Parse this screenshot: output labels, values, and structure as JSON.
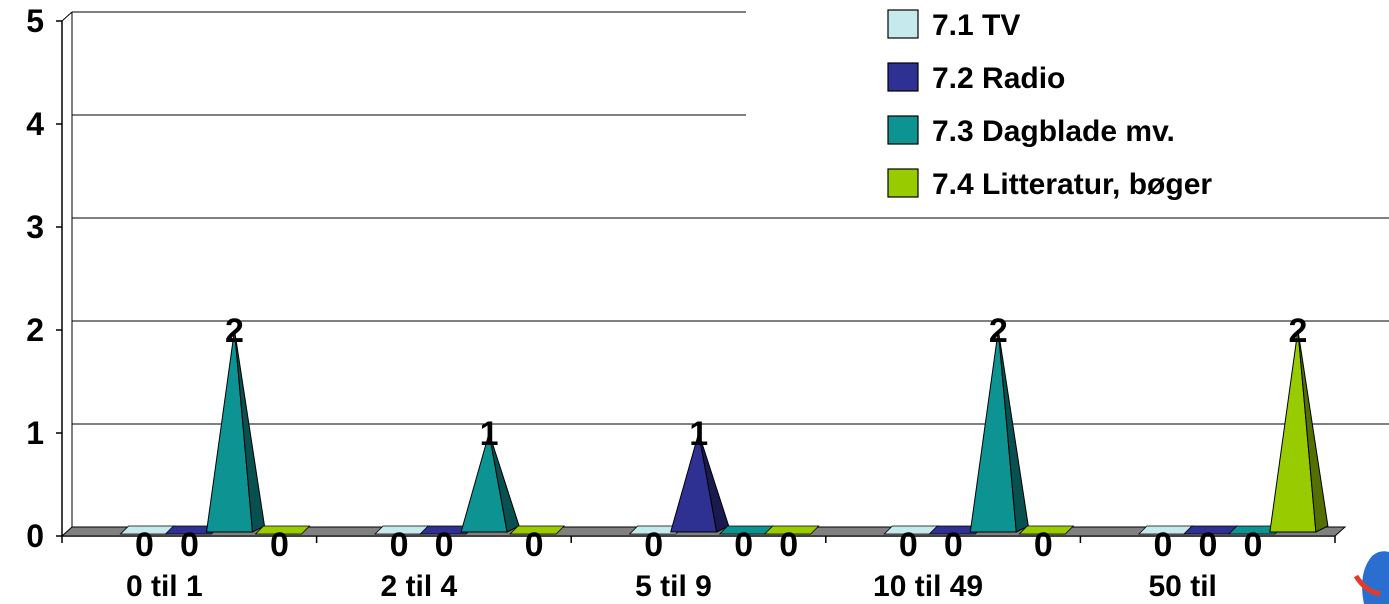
{
  "chart_data": {
    "type": "bar",
    "style": "3d-pyramid",
    "categories": [
      "0 til 1",
      "2 til 4",
      "5 til 9",
      "10 til 49",
      "50 til"
    ],
    "series": [
      {
        "name": "7.1 TV",
        "color": "#c6e9ee",
        "values": [
          0,
          0,
          0,
          0,
          0
        ]
      },
      {
        "name": "7.2 Radio",
        "color": "#2e3192",
        "values": [
          0,
          0,
          1,
          0,
          0
        ]
      },
      {
        "name": "7.3 Dagblade mv.",
        "color": "#0e9393",
        "values": [
          2,
          1,
          0,
          2,
          0
        ]
      },
      {
        "name": "7.4 Litteratur, bøger",
        "color": "#99cc00",
        "values": [
          0,
          0,
          0,
          0,
          2
        ]
      }
    ],
    "data_labels": [
      [
        "0",
        "0",
        "2",
        "0"
      ],
      [
        "0",
        "0",
        "1",
        "0"
      ],
      [
        "0",
        "1",
        "0",
        "0"
      ],
      [
        "0",
        "0",
        "2",
        "0"
      ],
      [
        "0",
        "0",
        "0",
        "2"
      ]
    ],
    "y_ticks": [
      "0",
      "1",
      "2",
      "3",
      "4",
      "5"
    ],
    "ylim": [
      0,
      5
    ],
    "grid": true,
    "legend_position": "top-right"
  }
}
